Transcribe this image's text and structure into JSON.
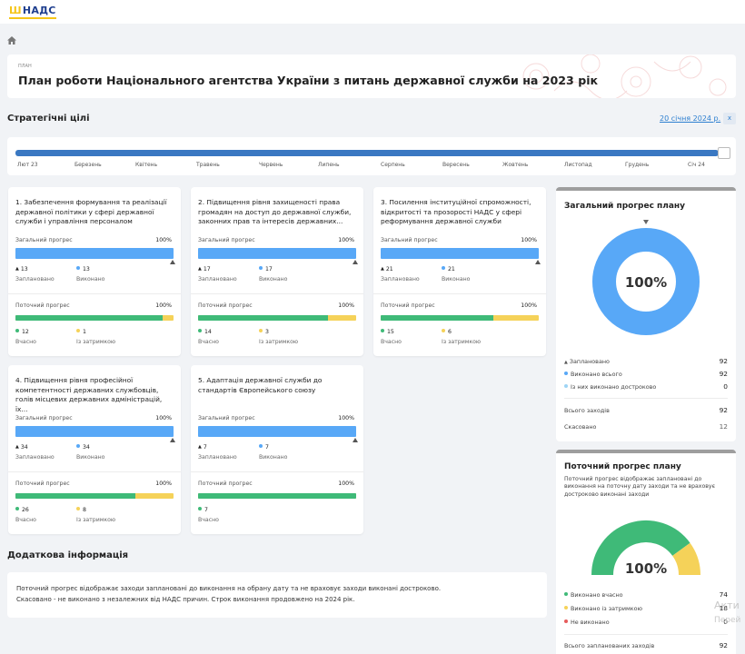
{
  "app": {
    "logo": "НАДС",
    "logo_mark": "Ш"
  },
  "header": {
    "kind": "ПЛАН",
    "title": "План роботи Національного агентства України з питань державної служби на 2023 рік"
  },
  "strategic": {
    "title": "Стратегічні цілі",
    "date_link": "20 січня 2024 р.",
    "close": "x"
  },
  "timeline": {
    "months": [
      "Лют 23",
      "Березень",
      "Квітень",
      "Травень",
      "Червень",
      "Липень",
      "Серпень",
      "Вересень",
      "Жовтень",
      "Листопад",
      "Грудень",
      "Січ 24"
    ]
  },
  "cards": [
    {
      "title": "1. Забезпечення формування та реалізації державної політики у сфері державної служби і управління персоналом",
      "overall_label": "Загальний прогрес",
      "overall_pct": "100%",
      "overall_progress": 1.0,
      "planned": "13",
      "planned_label": "Заплановано",
      "done": "13",
      "done_label": "Виконано",
      "current_label": "Поточний прогрес",
      "current_pct": "100%",
      "ontime_share": 0.93,
      "ontime": "12",
      "ontime_label": "Вчасно",
      "delayed": "1",
      "delayed_label": "Із затримкою"
    },
    {
      "title": "2. Підвищення рівня захищеності права громадян на доступ до державної служби, законних прав та інтересів державних...",
      "overall_label": "Загальний прогрес",
      "overall_pct": "100%",
      "overall_progress": 1.0,
      "planned": "17",
      "planned_label": "Заплановано",
      "done": "17",
      "done_label": "Виконано",
      "current_label": "Поточний прогрес",
      "current_pct": "100%",
      "ontime_share": 0.82,
      "ontime": "14",
      "ontime_label": "Вчасно",
      "delayed": "3",
      "delayed_label": "Із затримкою"
    },
    {
      "title": "3. Посилення інституційної спроможності, відкритості та прозорості НАДС у сфері реформування державної служби",
      "overall_label": "Загальний прогрес",
      "overall_pct": "100%",
      "overall_progress": 1.0,
      "planned": "21",
      "planned_label": "Заплановано",
      "done": "21",
      "done_label": "Виконано",
      "current_label": "Поточний прогрес",
      "current_pct": "100%",
      "ontime_share": 0.71,
      "ontime": "15",
      "ontime_label": "Вчасно",
      "delayed": "6",
      "delayed_label": "Із затримкою"
    },
    {
      "title": "4. Підвищення рівня професійної компетентності державних службовців, голів місцевих державних адміністрацій, їх...",
      "overall_label": "Загальний прогрес",
      "overall_pct": "100%",
      "overall_progress": 1.0,
      "planned": "34",
      "planned_label": "Заплановано",
      "done": "34",
      "done_label": "Виконано",
      "current_label": "Поточний прогрес",
      "current_pct": "100%",
      "ontime_share": 0.76,
      "ontime": "26",
      "ontime_label": "Вчасно",
      "delayed": "8",
      "delayed_label": "Із затримкою"
    },
    {
      "title": "5. Адаптація державної служби до стандартів Європейського союзу",
      "overall_label": "Загальний прогрес",
      "overall_pct": "100%",
      "overall_progress": 1.0,
      "planned": "7",
      "planned_label": "Заплановано",
      "done": "7",
      "done_label": "Виконано",
      "current_label": "Поточний прогрес",
      "current_pct": "100%",
      "ontime_share": 1.0,
      "ontime": "7",
      "ontime_label": "Вчасно"
    }
  ],
  "overall_panel": {
    "title": "Загальний прогрес плану",
    "donut_value": "100%",
    "donut_progress": 1.0,
    "rows": [
      {
        "label": "Заплановано",
        "value": "92"
      },
      {
        "label": "Виконано всього",
        "value": "92"
      },
      {
        "label": "Із них виконано достроково",
        "value": "0"
      }
    ],
    "total_label": "Всього заходів",
    "total_value": "92",
    "cancel_label": "Скасовано",
    "cancel_value": "12"
  },
  "current_panel": {
    "title": "Поточний прогрес плану",
    "desc_lines": [
      "Поточний прогрес відображає заплановані до",
      "виконання на поточну дату заходи та не враховує",
      "достроково виконані заходи"
    ],
    "gauge_value": "100%",
    "gauge_ontime_share": 0.8,
    "rows": [
      {
        "label": "Виконано вчасно",
        "value": "74"
      },
      {
        "label": "Виконано із затримкою",
        "value": "18"
      },
      {
        "label": "Не виконано",
        "value": "0"
      }
    ],
    "total_label": "Всього запланованих заходів",
    "total_value": "92"
  },
  "additional": {
    "title": "Додаткова інформація",
    "line1": "Поточний прогрес відображає заходи заплановані до виконання на обрану дату та не враховує заходи виконані достроково.",
    "line2": "Скасовано - не виконано з незалежних від НАДС причин. Строк виконання продовжено на 2024 рік."
  },
  "watermark": {
    "line1": "Акти",
    "line2": "Перей"
  },
  "colors": {
    "blue": "#58a8f7",
    "green": "#3fba78",
    "yellow": "#f5d259",
    "red": "#e65b5b",
    "lightblue": "#9ed4f5"
  }
}
